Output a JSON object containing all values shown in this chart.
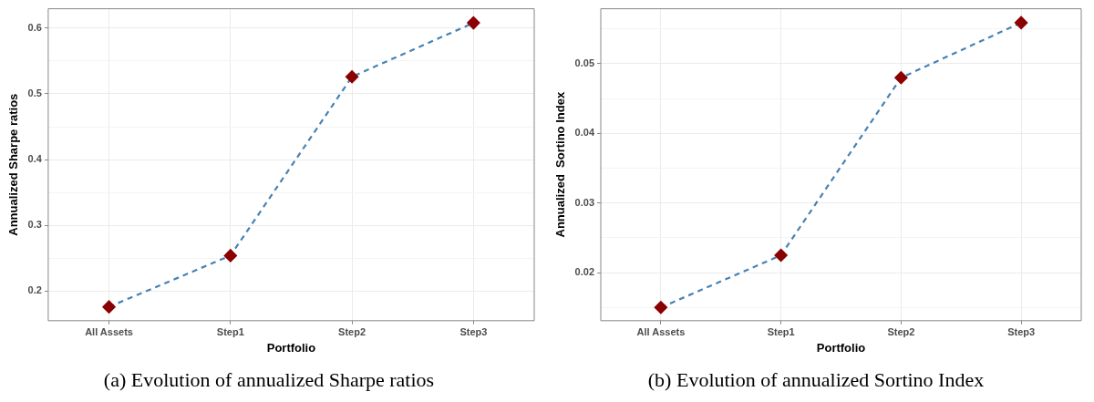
{
  "chart_data": [
    {
      "type": "line",
      "title": "(a) Evolution of annualized Sharpe ratios",
      "xlabel": "Portfolio",
      "ylabel": "Annualized Sharpe ratios",
      "categories": [
        "All Assets",
        "Step1",
        "Step2",
        "Step3"
      ],
      "series": [
        {
          "color": "#4682b4",
          "colors": [
            "#8b0000",
            "#8b0000",
            "#8b0000",
            "#8b0000"
          ],
          "values": [
            0.176,
            0.254,
            0.526,
            0.608
          ]
        }
      ],
      "ylim": [
        0.155,
        0.6295
      ],
      "yticks": [
        0.2,
        {
          "value": 0.25,
          "label": null
        },
        0.3,
        {
          "value": 0.35,
          "label": null
        },
        0.4,
        {
          "value": 0.45,
          "label": null
        },
        0.5,
        {
          "value": 0.55,
          "label": null
        },
        0.6
      ],
      "grid": true,
      "legend": false,
      "marker": "diamond",
      "line_style": "dashed"
    },
    {
      "type": "line",
      "title": "(b) Evolution of annualized Sortino Index",
      "xlabel": "Portfolio",
      "ylabel": "Annualized  Sortino Index",
      "categories": [
        "All Assets",
        "Step1",
        "Step2",
        "Step3"
      ],
      "series": [
        {
          "color": "#4682b4",
          "colors": [
            "#8b0000",
            "#8b0000",
            "#8b0000",
            "#8b0000"
          ],
          "values": [
            0.015,
            0.0225,
            0.048,
            0.0559
          ]
        }
      ],
      "ylim": [
        0.0131,
        0.0579
      ],
      "yticks": [
        {
          "value": 0.015,
          "label": null
        },
        0.02,
        {
          "value": 0.025,
          "label": null
        },
        0.03,
        {
          "value": 0.035,
          "label": null
        },
        0.04,
        {
          "value": 0.045,
          "label": null
        },
        0.05,
        {
          "value": 0.055,
          "label": null
        }
      ],
      "grid": true,
      "legend": false,
      "marker": "diamond",
      "line_style": "dashed"
    }
  ]
}
